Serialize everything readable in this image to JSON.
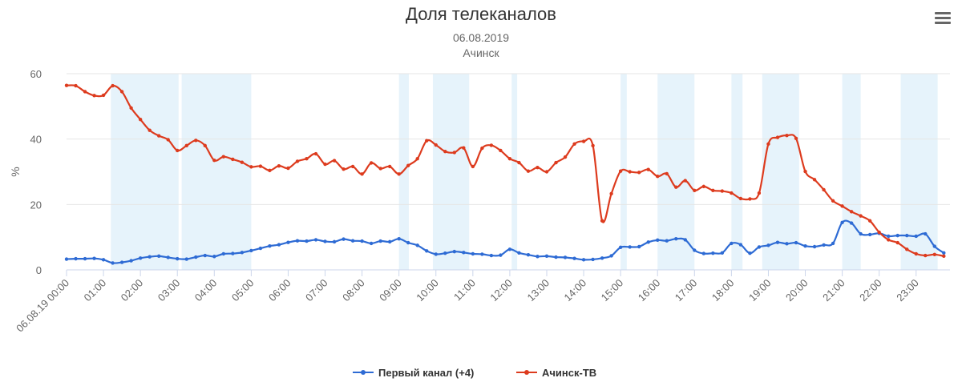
{
  "chart_data": {
    "type": "line",
    "title": "Доля телеканалов",
    "subtitle": [
      "06.08.2019",
      "Ачинск"
    ],
    "ylabel": "%",
    "ylim": [
      0,
      60
    ],
    "yticks": [
      "0",
      "20",
      "40",
      "60"
    ],
    "xlim": [
      0,
      1435
    ],
    "xtick_labels": [
      "06.08.19 00:00",
      "01:00",
      "02:00",
      "03:00",
      "04:00",
      "05:00",
      "06:00",
      "07:00",
      "08:00",
      "09:00",
      "10:00",
      "11:00",
      "12:00",
      "13:00",
      "14:00",
      "15:00",
      "16:00",
      "17:00",
      "18:00",
      "19:00",
      "20:00",
      "21:00",
      "22:00",
      "23:00"
    ],
    "xtick_minutes": [
      0,
      60,
      120,
      180,
      240,
      300,
      360,
      420,
      480,
      540,
      600,
      660,
      720,
      780,
      840,
      900,
      960,
      1020,
      1080,
      1140,
      1200,
      1260,
      1320,
      1380
    ],
    "grid": true,
    "legend_position": "bottom-center",
    "highlight_bands_minutes": [
      [
        72,
        182
      ],
      [
        187,
        300
      ],
      [
        540,
        556
      ],
      [
        595,
        654
      ],
      [
        723,
        732
      ],
      [
        900,
        910
      ],
      [
        960,
        1020
      ],
      [
        1080,
        1098
      ],
      [
        1130,
        1190
      ],
      [
        1260,
        1290
      ],
      [
        1355,
        1415
      ]
    ],
    "series": [
      {
        "name": "Первый канал (+4)",
        "color": "#2e6bd4",
        "x": [
          0,
          15,
          30,
          45,
          60,
          75,
          90,
          105,
          120,
          135,
          150,
          165,
          180,
          195,
          210,
          225,
          240,
          255,
          270,
          285,
          300,
          315,
          330,
          345,
          360,
          375,
          390,
          405,
          420,
          435,
          450,
          465,
          480,
          495,
          510,
          525,
          540,
          555,
          570,
          585,
          600,
          615,
          630,
          645,
          660,
          675,
          690,
          705,
          720,
          735,
          750,
          765,
          780,
          795,
          810,
          825,
          840,
          855,
          870,
          885,
          900,
          915,
          930,
          945,
          960,
          975,
          990,
          1005,
          1020,
          1035,
          1050,
          1065,
          1080,
          1095,
          1110,
          1125,
          1140,
          1155,
          1170,
          1185,
          1200,
          1215,
          1230,
          1245,
          1260,
          1275,
          1290,
          1305,
          1320,
          1335,
          1350,
          1365,
          1380,
          1395,
          1410,
          1425
        ],
        "values": [
          3.3,
          3.4,
          3.4,
          3.5,
          3.1,
          2.1,
          2.3,
          2.8,
          3.6,
          4.0,
          4.2,
          3.8,
          3.4,
          3.3,
          3.9,
          4.4,
          4.1,
          4.9,
          5.0,
          5.3,
          5.9,
          6.6,
          7.3,
          7.7,
          8.4,
          8.9,
          8.8,
          9.2,
          8.7,
          8.6,
          9.4,
          8.9,
          8.8,
          8.1,
          8.8,
          8.6,
          9.5,
          8.3,
          7.5,
          5.8,
          4.8,
          5.1,
          5.6,
          5.3,
          4.9,
          4.8,
          4.4,
          4.5,
          6.3,
          5.2,
          4.6,
          4.1,
          4.2,
          3.9,
          3.8,
          3.5,
          3.1,
          3.2,
          3.6,
          4.3,
          6.9,
          7.0,
          7.1,
          8.5,
          9.1,
          8.9,
          9.5,
          9.2,
          6.0,
          5.0,
          5.1,
          5.2,
          8.1,
          7.7,
          5.1,
          7.0,
          7.5,
          8.4,
          8.0,
          8.3,
          7.3,
          7.1,
          7.6,
          8.1,
          14.5,
          14.3,
          11.0,
          10.8,
          11.2,
          10.3,
          10.5,
          10.5,
          10.3,
          11.0,
          7.2,
          5.2
        ]
      },
      {
        "name": "Ачинск-ТВ",
        "color": "#dd3b1e",
        "x": [
          0,
          15,
          30,
          45,
          60,
          75,
          90,
          105,
          120,
          135,
          150,
          165,
          180,
          195,
          210,
          225,
          240,
          255,
          270,
          285,
          300,
          315,
          330,
          345,
          360,
          375,
          390,
          405,
          420,
          435,
          450,
          465,
          480,
          495,
          510,
          525,
          540,
          555,
          570,
          585,
          600,
          615,
          630,
          645,
          660,
          675,
          690,
          705,
          720,
          735,
          750,
          765,
          780,
          795,
          810,
          825,
          840,
          855,
          870,
          885,
          900,
          915,
          930,
          945,
          960,
          975,
          990,
          1005,
          1020,
          1035,
          1050,
          1065,
          1080,
          1095,
          1110,
          1125,
          1140,
          1155,
          1170,
          1185,
          1200,
          1215,
          1230,
          1245,
          1260,
          1275,
          1290,
          1305,
          1320,
          1335,
          1350,
          1365,
          1380,
          1395,
          1410,
          1425
        ],
        "values": [
          56.4,
          56.3,
          54.5,
          53.3,
          53.4,
          56.3,
          54.5,
          49.5,
          46.0,
          42.7,
          41.0,
          39.8,
          36.5,
          38.0,
          39.6,
          38.0,
          33.5,
          34.6,
          33.8,
          32.9,
          31.5,
          31.7,
          30.4,
          31.8,
          31.1,
          33.2,
          34.0,
          35.5,
          32.3,
          33.4,
          30.8,
          31.6,
          29.3,
          32.7,
          31.0,
          31.6,
          29.3,
          31.9,
          34.0,
          39.5,
          38.2,
          36.2,
          35.9,
          37.3,
          31.6,
          37.2,
          38.1,
          36.5,
          34.0,
          32.8,
          30.2,
          31.3,
          30.0,
          32.8,
          34.5,
          38.5,
          39.3,
          38.0,
          15.0,
          23.3,
          30.2,
          30.0,
          29.8,
          30.7,
          28.6,
          29.4,
          25.3,
          27.3,
          24.3,
          25.5,
          24.3,
          24.1,
          23.5,
          21.8,
          21.7,
          23.5,
          38.5,
          40.5,
          41.1,
          40.2,
          30.1,
          27.6,
          24.5,
          21.1,
          19.5,
          17.8,
          16.5,
          15.0,
          11.5,
          9.2,
          8.3,
          6.3,
          4.9,
          4.4,
          4.7,
          4.2
        ]
      }
    ]
  },
  "ui": {
    "menu_icon": "hamburger-menu-icon"
  }
}
